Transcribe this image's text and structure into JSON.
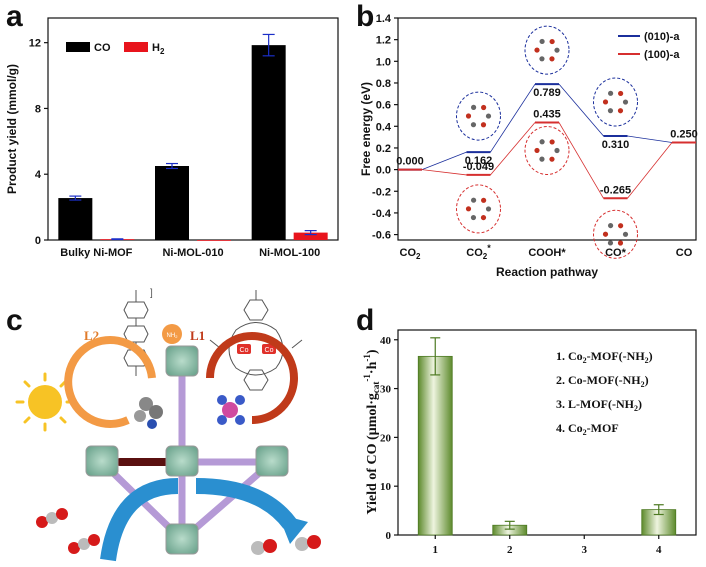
{
  "figure": {
    "panel_a_letter": "a",
    "panel_b_letter": "b",
    "panel_c_letter": "c",
    "panel_d_letter": "d"
  },
  "chart_data": [
    {
      "id": "a",
      "type": "bar",
      "title": "",
      "xlabel": "",
      "ylabel": "Product yield (mmol/g)",
      "ylim": [
        0,
        13.5
      ],
      "yticks": [
        "0",
        "4",
        "8",
        "12"
      ],
      "ytick_values": [
        0,
        4,
        8,
        12
      ],
      "categories": [
        "Bulky Ni-MOF",
        "Ni-MOL-010",
        "Ni-MOL-100"
      ],
      "legend": {
        "position": "top-left",
        "entries": [
          "CO",
          "H"
        ]
      },
      "legend_h2_sub": "2",
      "series": [
        {
          "name": "CO",
          "color": "#000000",
          "values": [
            2.55,
            4.5,
            11.85
          ],
          "errors": [
            0.12,
            0.15,
            0.65
          ]
        },
        {
          "name": "H2",
          "color": "#e8141c",
          "values": [
            0.05,
            0.0,
            0.45
          ],
          "errors": [
            0.02,
            0.0,
            0.12
          ]
        }
      ]
    },
    {
      "id": "b",
      "type": "line",
      "title": "",
      "xlabel": "Reaction pathway",
      "ylabel": "Free energy (eV)",
      "ylim": [
        -0.65,
        1.4
      ],
      "yticks": [
        "-0.6",
        "-0.4",
        "-0.2",
        "0.0",
        "0.2",
        "0.4",
        "0.6",
        "0.8",
        "1.0",
        "1.2",
        "1.4"
      ],
      "ytick_values": [
        -0.6,
        -0.4,
        -0.2,
        0.0,
        0.2,
        0.4,
        0.6,
        0.8,
        1.0,
        1.2,
        1.4
      ],
      "categories": [
        "CO",
        "CO",
        "COOH*",
        "CO*",
        "CO"
      ],
      "category_subs": [
        "2",
        "2",
        "",
        "",
        ""
      ],
      "category_sups": [
        "",
        "*",
        "",
        "",
        ""
      ],
      "legend": {
        "position": "top-right",
        "entries": [
          "(010)-a",
          "(100)-a"
        ]
      },
      "series": [
        {
          "name": "(010)-a",
          "color": "#1b2f9c",
          "values": [
            0.0,
            0.162,
            0.789,
            0.31,
            0.25
          ],
          "labels": [
            "",
            "0.162",
            "0.789",
            "0.310",
            ""
          ]
        },
        {
          "name": "(100)-a",
          "color": "#d62f2f",
          "values": [
            0.0,
            -0.049,
            0.435,
            -0.265,
            0.25
          ],
          "labels": [
            "0.000",
            "-0.049",
            "0.435",
            "-0.265",
            "0.250"
          ]
        }
      ]
    },
    {
      "id": "d",
      "type": "bar",
      "title": "",
      "xlabel": "",
      "ylabel": "Yield of CO (µmol·g",
      "ylabel_sub": "cat",
      "ylabel_sup": "-1",
      "ylabel_end": "·h",
      "ylabel_close": ")",
      "ylim": [
        0,
        42
      ],
      "yticks": [
        "0",
        "10",
        "20",
        "30",
        "40"
      ],
      "ytick_values": [
        0,
        10,
        20,
        30,
        40
      ],
      "categories": [
        "1",
        "2",
        "3",
        "4"
      ],
      "legend": {
        "position": "top-right",
        "entries": [
          {
            "prefix": "1. Co",
            "sub": "2",
            "suffix": "-MOF(-NH",
            "sub2": "2",
            "end": ")"
          },
          {
            "prefix": "2. Co-MOF(-NH",
            "sub": "2",
            "suffix": ")",
            "sub2": "",
            "end": ""
          },
          {
            "prefix": "3. L-MOF(-NH",
            "sub": "2",
            "suffix": ")",
            "sub2": "",
            "end": ""
          },
          {
            "prefix": "4. Co",
            "sub": "2",
            "suffix": "-MOF",
            "sub2": "",
            "end": ""
          }
        ]
      },
      "series": [
        {
          "name": "Yield of CO",
          "color": "#6f9a3a",
          "values": [
            36.6,
            2.0,
            0.0,
            5.2
          ],
          "errors": [
            3.8,
            0.8,
            0.0,
            1.0
          ]
        }
      ]
    }
  ],
  "schematic": {
    "label_l2": "L2",
    "label_l1": "L1",
    "nh2": "NH",
    "nh2_sub": "2",
    "co": "Co",
    "accent_orange": "#f39a45",
    "accent_red": "#c03a1a",
    "sun_color": "#f7c325",
    "arrow_blue": "#2a8fd0",
    "node_green": "#7fb5a0",
    "linker_purple": "#b59ad6"
  }
}
